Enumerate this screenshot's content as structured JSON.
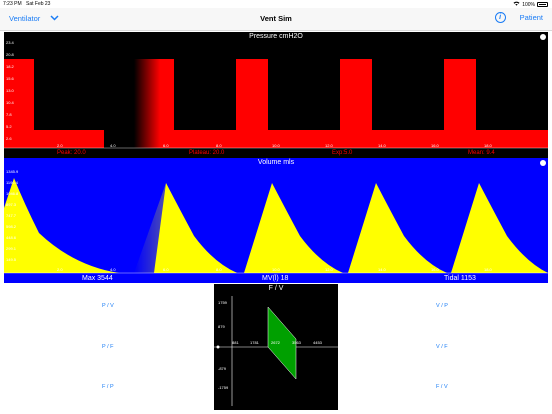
{
  "status": {
    "time": "7:23 PM",
    "date": "Sat Feb 23",
    "battery": "100%"
  },
  "nav": {
    "left_label": "Ventilator",
    "title": "Vent Sim",
    "right_label": "Patient"
  },
  "pressure": {
    "title": "Pressure cmH2O",
    "y_ticks": [
      "23.4",
      "20.8",
      "18.2",
      "15.6",
      "13.0",
      "10.4",
      "7.8",
      "5.2",
      "2.6"
    ],
    "x_ticks": [
      "2.0",
      "4.0",
      "6.0",
      "8.0",
      "10.0",
      "12.0",
      "14.0",
      "16.0",
      "18.0"
    ],
    "stats": {
      "peak": "Peak: 20.0",
      "plateau": "Plateau: 20.0",
      "exp": "Exp:5.0",
      "mean": "Mean: 9.4"
    },
    "colors": {
      "bg": "#000000",
      "trace": "#ff0000"
    }
  },
  "volume": {
    "title": "Volume mls",
    "y_ticks": [
      "1345.9",
      "1196.4",
      "1046.8",
      "897.3",
      "747.7",
      "598.2",
      "448.6",
      "299.1",
      "149.5"
    ],
    "x_ticks": [
      "2.0",
      "4.0",
      "6.0",
      "8.0",
      "10.0",
      "12.0",
      "14.0",
      "16.0",
      "18.0"
    ],
    "footer": {
      "max": "Max 3544",
      "mv": "MV(l) 18",
      "tidal": "Tidal 1153"
    },
    "colors": {
      "bg": "#0000ff",
      "trace": "#ffff00"
    }
  },
  "fv": {
    "title": "F / V",
    "y_pos": [
      "1759",
      "879"
    ],
    "y_neg": [
      "-879",
      "-1759"
    ],
    "x_ticks": [
      "881",
      "1781",
      "2672",
      "3563",
      "4453"
    ]
  },
  "left_buttons": [
    "P / V",
    "P / F",
    "F / P"
  ],
  "right_buttons": [
    "V / P",
    "V / F",
    "F / V"
  ]
}
